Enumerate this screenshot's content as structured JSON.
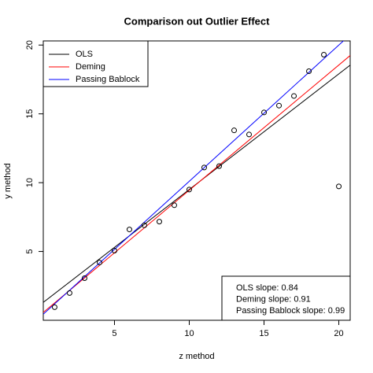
{
  "chart_data": {
    "type": "scatter",
    "title": "Comparison out Outlier Effect",
    "x_label": "z method",
    "y_label": "y method",
    "xlim": [
      0.24,
      20.76
    ],
    "ylim": [
      0,
      20.3
    ],
    "xticks": [
      5,
      10,
      15,
      20
    ],
    "yticks": [
      5,
      10,
      15,
      20
    ],
    "points": {
      "x": [
        1,
        2,
        3,
        4,
        5,
        6,
        7,
        8,
        9,
        10,
        11,
        12,
        13,
        14,
        15,
        16,
        17,
        18,
        19,
        20
      ],
      "values": [
        0.95,
        1.98,
        3.06,
        4.2,
        5.06,
        6.6,
        6.9,
        7.17,
        8.36,
        9.5,
        11.1,
        11.2,
        13.8,
        13.5,
        15.1,
        15.6,
        16.3,
        18.1,
        19.3,
        9.73
      ]
    },
    "series": [
      {
        "name": "OLS",
        "color": "#000000",
        "x": [
          0.24,
          20.76
        ],
        "values": [
          1.3,
          18.54
        ]
      },
      {
        "name": "Deming",
        "color": "#ff0000",
        "x": [
          0.24,
          20.76
        ],
        "values": [
          0.57,
          19.24
        ]
      },
      {
        "name": "Passing Bablock",
        "color": "#0000ff",
        "x": [
          0.24,
          20.76
        ],
        "values": [
          0.44,
          20.75
        ]
      }
    ],
    "legend": "top-left",
    "annotations": [
      "OLS slope: 0.84",
      "Deming slope: 0.91",
      "Passing Bablock slope: 0.99"
    ]
  }
}
